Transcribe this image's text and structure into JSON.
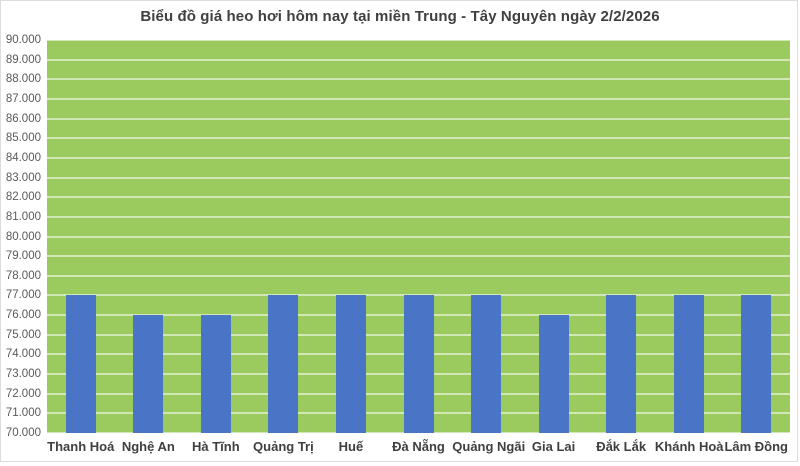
{
  "chart_data": {
    "type": "bar",
    "title": "Biểu đồ giá heo hơi hôm nay tại miền Trung - Tây Nguyên ngày 2/2/2026",
    "categories": [
      "Thanh Hoá",
      "Nghệ An",
      "Hà Tĩnh",
      "Quảng Trị",
      "Huế",
      "Đà Nẵng",
      "Quảng Ngãi",
      "Gia Lai",
      "Đắk Lắk",
      "Khánh Hoà",
      "Lâm Đồng"
    ],
    "values": [
      77000,
      76000,
      76000,
      77000,
      77000,
      77000,
      77000,
      76000,
      77000,
      77000,
      77000
    ],
    "xlabel": "",
    "ylabel": "",
    "ylim": [
      70000,
      90000
    ],
    "y_tick_step": 1000,
    "y_tick_labels": [
      "90.000",
      "89.000",
      "88.000",
      "87.000",
      "86.000",
      "85.000",
      "84.000",
      "83.000",
      "82.000",
      "81.000",
      "80.000",
      "79.000",
      "78.000",
      "77.000",
      "76.000",
      "75.000",
      "74.000",
      "73.000",
      "72.000",
      "71.000",
      "70.000"
    ],
    "grid": true,
    "legend": false
  },
  "colors": {
    "plot_background": "#9bca5e",
    "bar": "#4a74c6",
    "gridline": "rgba(255,255,255,0.55)",
    "title_text": "#404040",
    "tick_text": "#595959",
    "category_text": "#3f3f3f",
    "frame_border": "#dcdcdc"
  }
}
